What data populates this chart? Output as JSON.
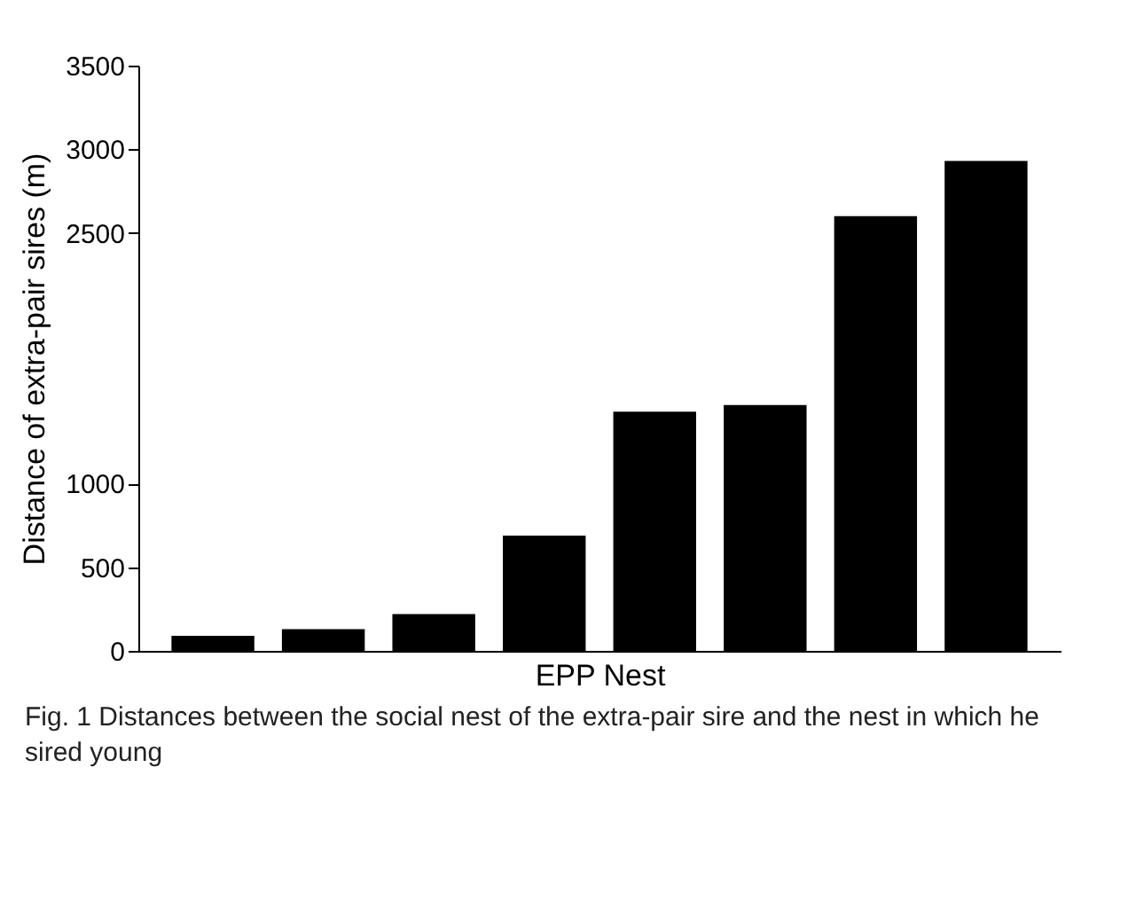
{
  "chart_data": {
    "type": "bar",
    "xlabel": "EPP Nest",
    "ylabel": "Distance of extra-pair sires (m)",
    "categories": [
      null,
      null,
      null,
      null,
      null,
      null,
      null,
      null
    ],
    "values": [
      90,
      130,
      220,
      690,
      1430,
      1470,
      2600,
      2930
    ],
    "color": "#000000",
    "ylim": [
      0,
      3500
    ],
    "yticks": [
      0,
      500,
      1000,
      2500,
      3000,
      3500
    ],
    "tick_labels": "y",
    "annotations": [
      "Fig. 1 Distances between the social nest of the extra-pair sire and the nest in which he sired young"
    ]
  }
}
